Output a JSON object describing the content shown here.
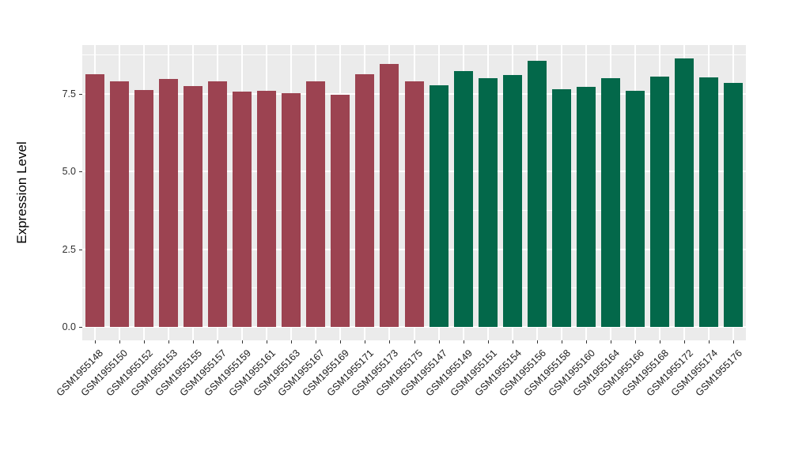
{
  "figure": {
    "background_color": "#FFFFFF",
    "panel_color": "#EBEBEB",
    "grid_color": "#FFFFFF",
    "axis_text_color": "#303030",
    "axis_title_color": "#000000"
  },
  "chart_data": {
    "type": "bar",
    "title": "",
    "xlabel": "",
    "ylabel": "Expression Level",
    "ylim": [
      -0.43,
      9.08
    ],
    "yticks": [
      0,
      2.5,
      5,
      7.5
    ],
    "ytick_labels": [
      "0.0",
      "2.5",
      "5.0",
      "7.5"
    ],
    "grid": "on",
    "legend": "none",
    "bar_width_fraction": 0.78,
    "group_colors": {
      "maroon": "#9C4351",
      "green": "#03684A"
    },
    "categories": [
      "GSM1955148",
      "GSM1955150",
      "GSM1955152",
      "GSM1955153",
      "GSM1955155",
      "GSM1955157",
      "GSM1955159",
      "GSM1955161",
      "GSM1955163",
      "GSM1955167",
      "GSM1955169",
      "GSM1955171",
      "GSM1955173",
      "GSM1955175",
      "GSM1955147",
      "GSM1955149",
      "GSM1955151",
      "GSM1955154",
      "GSM1955156",
      "GSM1955158",
      "GSM1955160",
      "GSM1955164",
      "GSM1955166",
      "GSM1955168",
      "GSM1955172",
      "GSM1955174",
      "GSM1955176"
    ],
    "values": [
      8.15,
      7.9,
      7.64,
      7.98,
      7.76,
      7.9,
      7.58,
      7.6,
      7.54,
      7.9,
      7.49,
      8.15,
      8.47,
      7.9,
      7.79,
      8.24,
      8.01,
      8.12,
      8.58,
      7.66,
      7.73,
      8.02,
      7.6,
      8.07,
      8.64,
      8.03,
      7.86
    ],
    "bar_groups": [
      "maroon",
      "maroon",
      "maroon",
      "maroon",
      "maroon",
      "maroon",
      "maroon",
      "maroon",
      "maroon",
      "maroon",
      "maroon",
      "maroon",
      "maroon",
      "maroon",
      "green",
      "green",
      "green",
      "green",
      "green",
      "green",
      "green",
      "green",
      "green",
      "green",
      "green",
      "green",
      "green"
    ]
  }
}
